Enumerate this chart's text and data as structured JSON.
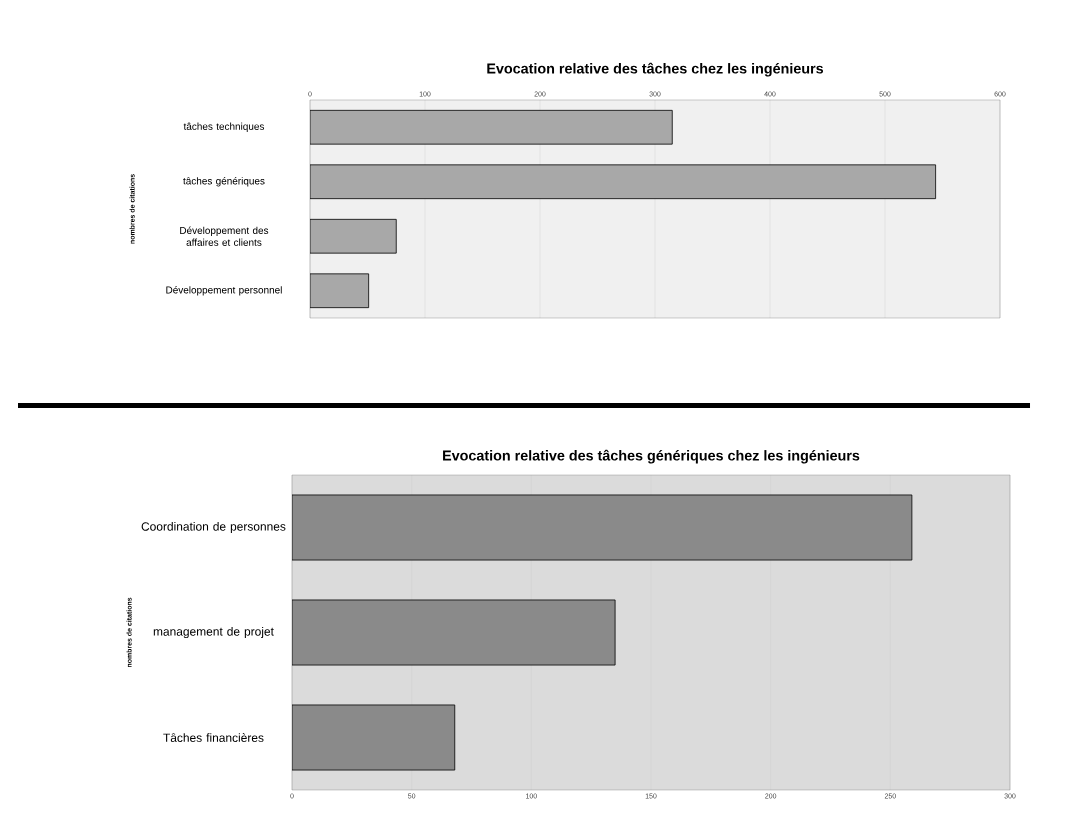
{
  "chart_data": [
    {
      "type": "bar",
      "orientation": "horizontal",
      "title": "Evocation relative des tâches chez les ingénieurs",
      "ylabel": "nombres de citations",
      "categories": [
        "tâches techniques",
        "tâches génériques",
        "Développement des affaires et clients",
        "Développement personnel"
      ],
      "values": [
        315,
        544,
        75,
        51
      ],
      "color": "#a8a8a8",
      "xlim": [
        0,
        600
      ],
      "xticks": [
        0,
        100,
        200,
        300,
        400,
        500,
        600
      ],
      "grid": "x"
    },
    {
      "type": "bar",
      "orientation": "horizontal",
      "title": "Evocation relative des tâches génériques chez les ingénieurs",
      "ylabel": "nombres de citations",
      "categories": [
        "Coordination de personnes",
        "management de projet",
        "Tâches financières"
      ],
      "values": [
        259,
        135,
        68
      ],
      "color": "#8a8a8a",
      "xlim": [
        0,
        300
      ],
      "xticks": [
        0,
        50,
        100,
        150,
        200,
        250,
        300
      ],
      "grid": "x"
    }
  ]
}
